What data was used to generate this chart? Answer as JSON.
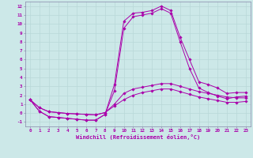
{
  "xlabel": "Windchill (Refroidissement éolien,°C)",
  "background_color": "#cce8e8",
  "line_color": "#aa00aa",
  "grid_color": "#b8d8d8",
  "spine_color": "#8888aa",
  "x_ticks": [
    0,
    1,
    2,
    3,
    4,
    5,
    6,
    7,
    8,
    9,
    10,
    11,
    12,
    13,
    14,
    15,
    16,
    17,
    18,
    19,
    20,
    21,
    22,
    23
  ],
  "y_ticks": [
    -1,
    0,
    1,
    2,
    3,
    4,
    5,
    6,
    7,
    8,
    9,
    10,
    11,
    12
  ],
  "ylim": [
    -1.5,
    12.5
  ],
  "xlim": [
    -0.5,
    23.5
  ],
  "lines": [
    [
      1.5,
      0.2,
      -0.4,
      -0.5,
      -0.6,
      -0.7,
      -0.8,
      -0.8,
      -0.15,
      3.2,
      10.3,
      11.2,
      11.3,
      11.5,
      12.0,
      11.5,
      8.5,
      6.0,
      3.5,
      3.2,
      2.8,
      2.2,
      2.3,
      2.3
    ],
    [
      1.5,
      0.2,
      -0.4,
      -0.5,
      -0.6,
      -0.7,
      -0.8,
      -0.8,
      -0.15,
      2.5,
      9.5,
      10.8,
      11.0,
      11.2,
      11.7,
      11.2,
      8.0,
      5.0,
      2.8,
      2.3,
      1.9,
      1.6,
      1.8,
      1.9
    ],
    [
      1.5,
      0.6,
      0.15,
      0.05,
      -0.05,
      -0.1,
      -0.15,
      -0.2,
      0.05,
      1.0,
      2.2,
      2.7,
      2.9,
      3.1,
      3.3,
      3.3,
      3.0,
      2.7,
      2.4,
      2.2,
      2.0,
      1.8,
      1.7,
      1.7
    ],
    [
      1.5,
      0.6,
      0.15,
      0.05,
      -0.05,
      -0.1,
      -0.15,
      -0.2,
      0.05,
      0.8,
      1.5,
      2.0,
      2.3,
      2.5,
      2.7,
      2.7,
      2.4,
      2.1,
      1.8,
      1.6,
      1.4,
      1.2,
      1.2,
      1.3
    ]
  ]
}
